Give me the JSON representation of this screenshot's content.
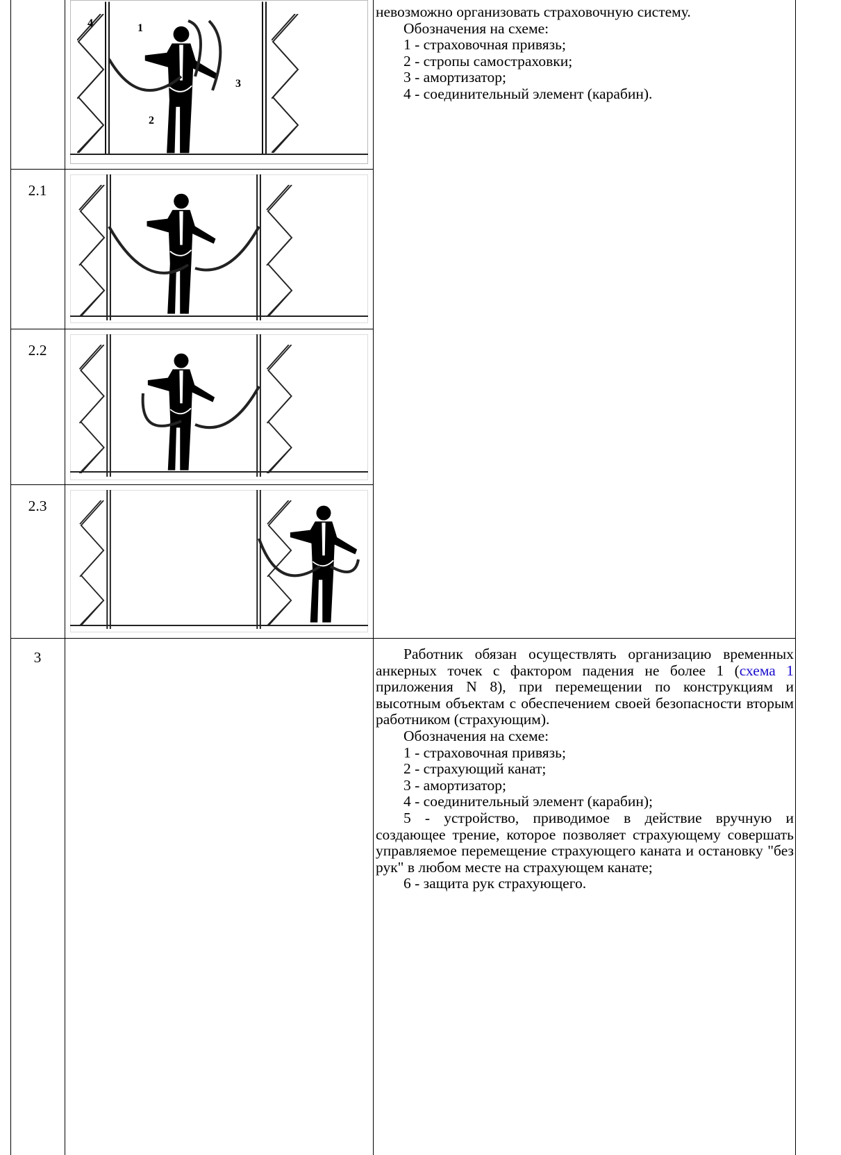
{
  "continued_row": {
    "figure_labels": [
      "1",
      "2",
      "3",
      "4"
    ],
    "description": {
      "lead": "невозможно организовать страховочную систему.",
      "legend_title": "Обозначения на схеме:",
      "legend": [
        "1 - страховочная привязь;",
        "2 - стропы самостраховки;",
        "3 - амортизатор;",
        "4 - соединительный элемент (карабин)."
      ]
    }
  },
  "rows": [
    {
      "number": "2.1"
    },
    {
      "number": "2.2"
    },
    {
      "number": "2.3"
    },
    {
      "number": "3",
      "description": {
        "text_before": "Работник обязан осуществлять организацию временных анкерных точек с фактором падения не более 1 (",
        "link": "схема 1",
        "text_after": " приложения N 8), при перемещении по конструкциям и высотным объектам с обеспечением своей безопасности вторым работником (страхующим).",
        "legend_title": "Обозначения на схеме:",
        "legend": [
          "1 - страховочная привязь;",
          "2 - страхующий канат;",
          "3 - амортизатор;",
          "4 - соединительный элемент (карабин);",
          "5 - устройство, приводимое в действие вручную и создающее трение, которое позволяет страхующему совершать управляемое перемещение страхующего каната и остановку \"без рук\" в любом месте на страхующем канате;",
          "6 - защита рук страхующего."
        ]
      }
    }
  ]
}
